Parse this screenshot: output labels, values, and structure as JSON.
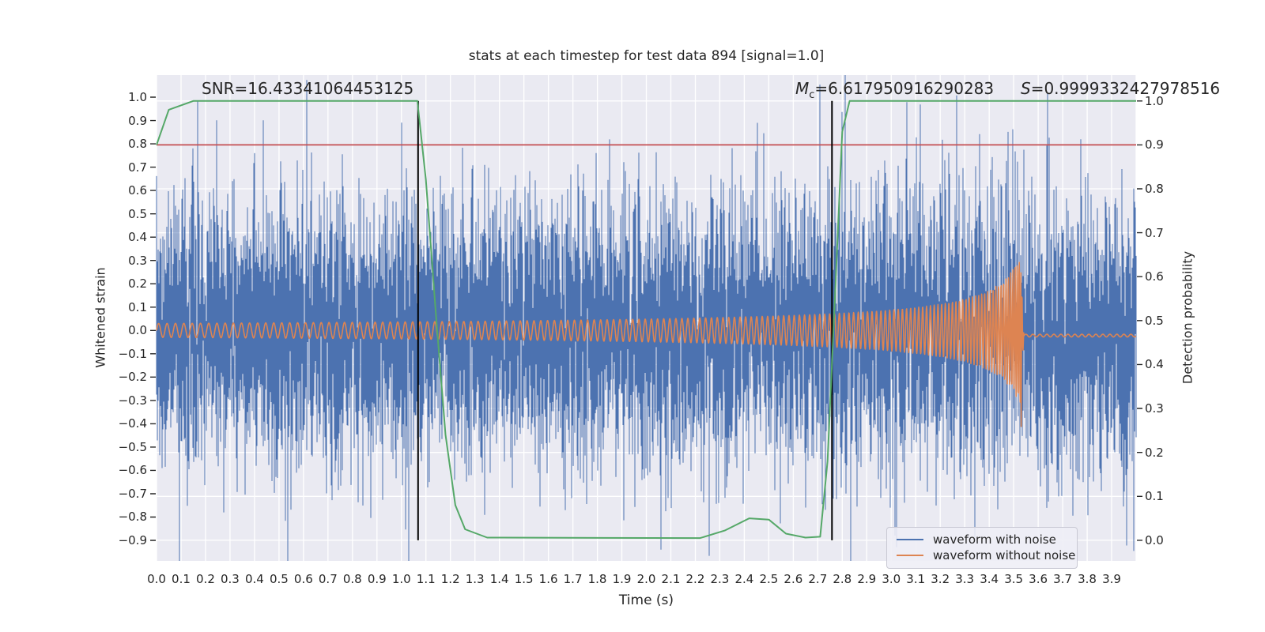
{
  "title": "stats at each timestep for test data 894 [signal=1.0]",
  "annotations": {
    "snr": {
      "text": "SNR=16.43341064453125"
    },
    "mc": {
      "var": "M",
      "sub": "c",
      "rest": "=6.617950916290283"
    },
    "s": {
      "var": "S",
      "rest": "=0.9999332427978516"
    }
  },
  "axes": {
    "x": {
      "label": "Time (s)",
      "ticks": [
        "0.0",
        "0.1",
        "0.2",
        "0.3",
        "0.4",
        "0.5",
        "0.6",
        "0.7",
        "0.8",
        "0.9",
        "1.0",
        "1.1",
        "1.2",
        "1.3",
        "1.4",
        "1.5",
        "1.6",
        "1.7",
        "1.8",
        "1.9",
        "2.0",
        "2.1",
        "2.2",
        "2.3",
        "2.4",
        "2.5",
        "2.6",
        "2.7",
        "2.8",
        "2.9",
        "3.0",
        "3.1",
        "3.2",
        "3.3",
        "3.4",
        "3.5",
        "3.6",
        "3.7",
        "3.8",
        "3.9"
      ],
      "tick_values": [
        0.0,
        0.1,
        0.2,
        0.3,
        0.4,
        0.5,
        0.6,
        0.7,
        0.8,
        0.9,
        1.0,
        1.1,
        1.2,
        1.3,
        1.4,
        1.5,
        1.6,
        1.7,
        1.8,
        1.9,
        2.0,
        2.1,
        2.2,
        2.3,
        2.4,
        2.5,
        2.6,
        2.7,
        2.8,
        2.9,
        3.0,
        3.1,
        3.2,
        3.3,
        3.4,
        3.5,
        3.6,
        3.7,
        3.8,
        3.9
      ]
    },
    "y_left": {
      "label": "Whitened strain",
      "ticks": [
        "1.0",
        "0.9",
        "0.8",
        "0.7",
        "0.6",
        "0.5",
        "0.4",
        "0.3",
        "0.2",
        "0.1",
        "0.0",
        "−0.1",
        "−0.2",
        "−0.3",
        "−0.4",
        "−0.5",
        "−0.6",
        "−0.7",
        "−0.8",
        "−0.9"
      ],
      "tick_values": [
        1.0,
        0.9,
        0.8,
        0.7,
        0.6,
        0.5,
        0.4,
        0.3,
        0.2,
        0.1,
        0.0,
        -0.1,
        -0.2,
        -0.3,
        -0.4,
        -0.5,
        -0.6,
        -0.7,
        -0.8,
        -0.9
      ]
    },
    "y_right": {
      "label": "Detection probability",
      "ticks": [
        "1.0",
        "0.9",
        "0.8",
        "0.7",
        "0.6",
        "0.5",
        "0.4",
        "0.3",
        "0.2",
        "0.1",
        "0.0"
      ],
      "tick_values": [
        1.0,
        0.9,
        0.8,
        0.7,
        0.6,
        0.5,
        0.4,
        0.3,
        0.2,
        0.1,
        0.0
      ]
    }
  },
  "legend": {
    "items": [
      {
        "label": "waveform with noise",
        "color": "#4C72B0"
      },
      {
        "label": "waveform without noise",
        "color": "#DD8452"
      }
    ]
  },
  "colors": {
    "plot_bg": "#EAEAF2",
    "grid": "#FFFFFF",
    "noise_blue": "#4C72B0",
    "signal_orange": "#DD8452",
    "probability_green": "#55A868",
    "threshold_red": "#C44E52",
    "event_black": "#000000",
    "text": "#262626"
  },
  "chart_data": {
    "type": "line",
    "title": "stats at each timestep for test data 894 [signal=1.0]",
    "xlabel": "Time (s)",
    "ylabel_left": "Whitened strain",
    "ylabel_right": "Detection probability",
    "xlim": [
      0.0,
      4.0
    ],
    "ylim_left": [
      -0.988,
      1.095
    ],
    "ylim_right": [
      -0.047,
      1.059
    ],
    "grid": {
      "vertical_step_s": 0.1,
      "horizontal_axis": "right",
      "horizontal_step": 0.1,
      "on": true
    },
    "threshold_line": {
      "axis": "right",
      "value": 0.9,
      "color": "#C44E52"
    },
    "event_vlines": {
      "times_s": [
        1.068,
        2.758
      ],
      "span_right_axis": [
        0.0,
        1.0
      ],
      "color": "#000000"
    },
    "series": [
      {
        "name": "waveform with noise",
        "axis": "left",
        "style": "noise_band",
        "color": "#4C72B0",
        "noise_std": 0.27,
        "samples_per_pixel": 7,
        "spike_prob": 0.012,
        "spike_gain": 1.9,
        "seed": 20240894,
        "typical_envelope": 0.45,
        "max_spike": 0.95
      },
      {
        "name": "waveform without noise",
        "axis": "left",
        "style": "chirp",
        "color": "#DD8452",
        "f0_hz": 29,
        "coalescence_time_s": 3.595,
        "merger_cutoff_s": 3.53,
        "amp0": 0.03,
        "amp_exponent": -0.6,
        "peak_amp": 0.33,
        "post_merger_level": -0.022
      },
      {
        "name": "detection probability",
        "axis": "right",
        "style": "polyline",
        "color": "#55A868",
        "points": [
          [
            0.0,
            0.9
          ],
          [
            0.05,
            0.98
          ],
          [
            0.15,
            1.0
          ],
          [
            1.065,
            1.0
          ],
          [
            1.1,
            0.82
          ],
          [
            1.14,
            0.52
          ],
          [
            1.18,
            0.24
          ],
          [
            1.22,
            0.08
          ],
          [
            1.26,
            0.025
          ],
          [
            1.35,
            0.006
          ],
          [
            2.22,
            0.005
          ],
          [
            2.32,
            0.022
          ],
          [
            2.42,
            0.05
          ],
          [
            2.5,
            0.047
          ],
          [
            2.57,
            0.015
          ],
          [
            2.65,
            0.006
          ],
          [
            2.71,
            0.008
          ],
          [
            2.74,
            0.18
          ],
          [
            2.77,
            0.55
          ],
          [
            2.8,
            0.93
          ],
          [
            2.83,
            1.0
          ],
          [
            4.0,
            1.0
          ]
        ]
      }
    ]
  }
}
